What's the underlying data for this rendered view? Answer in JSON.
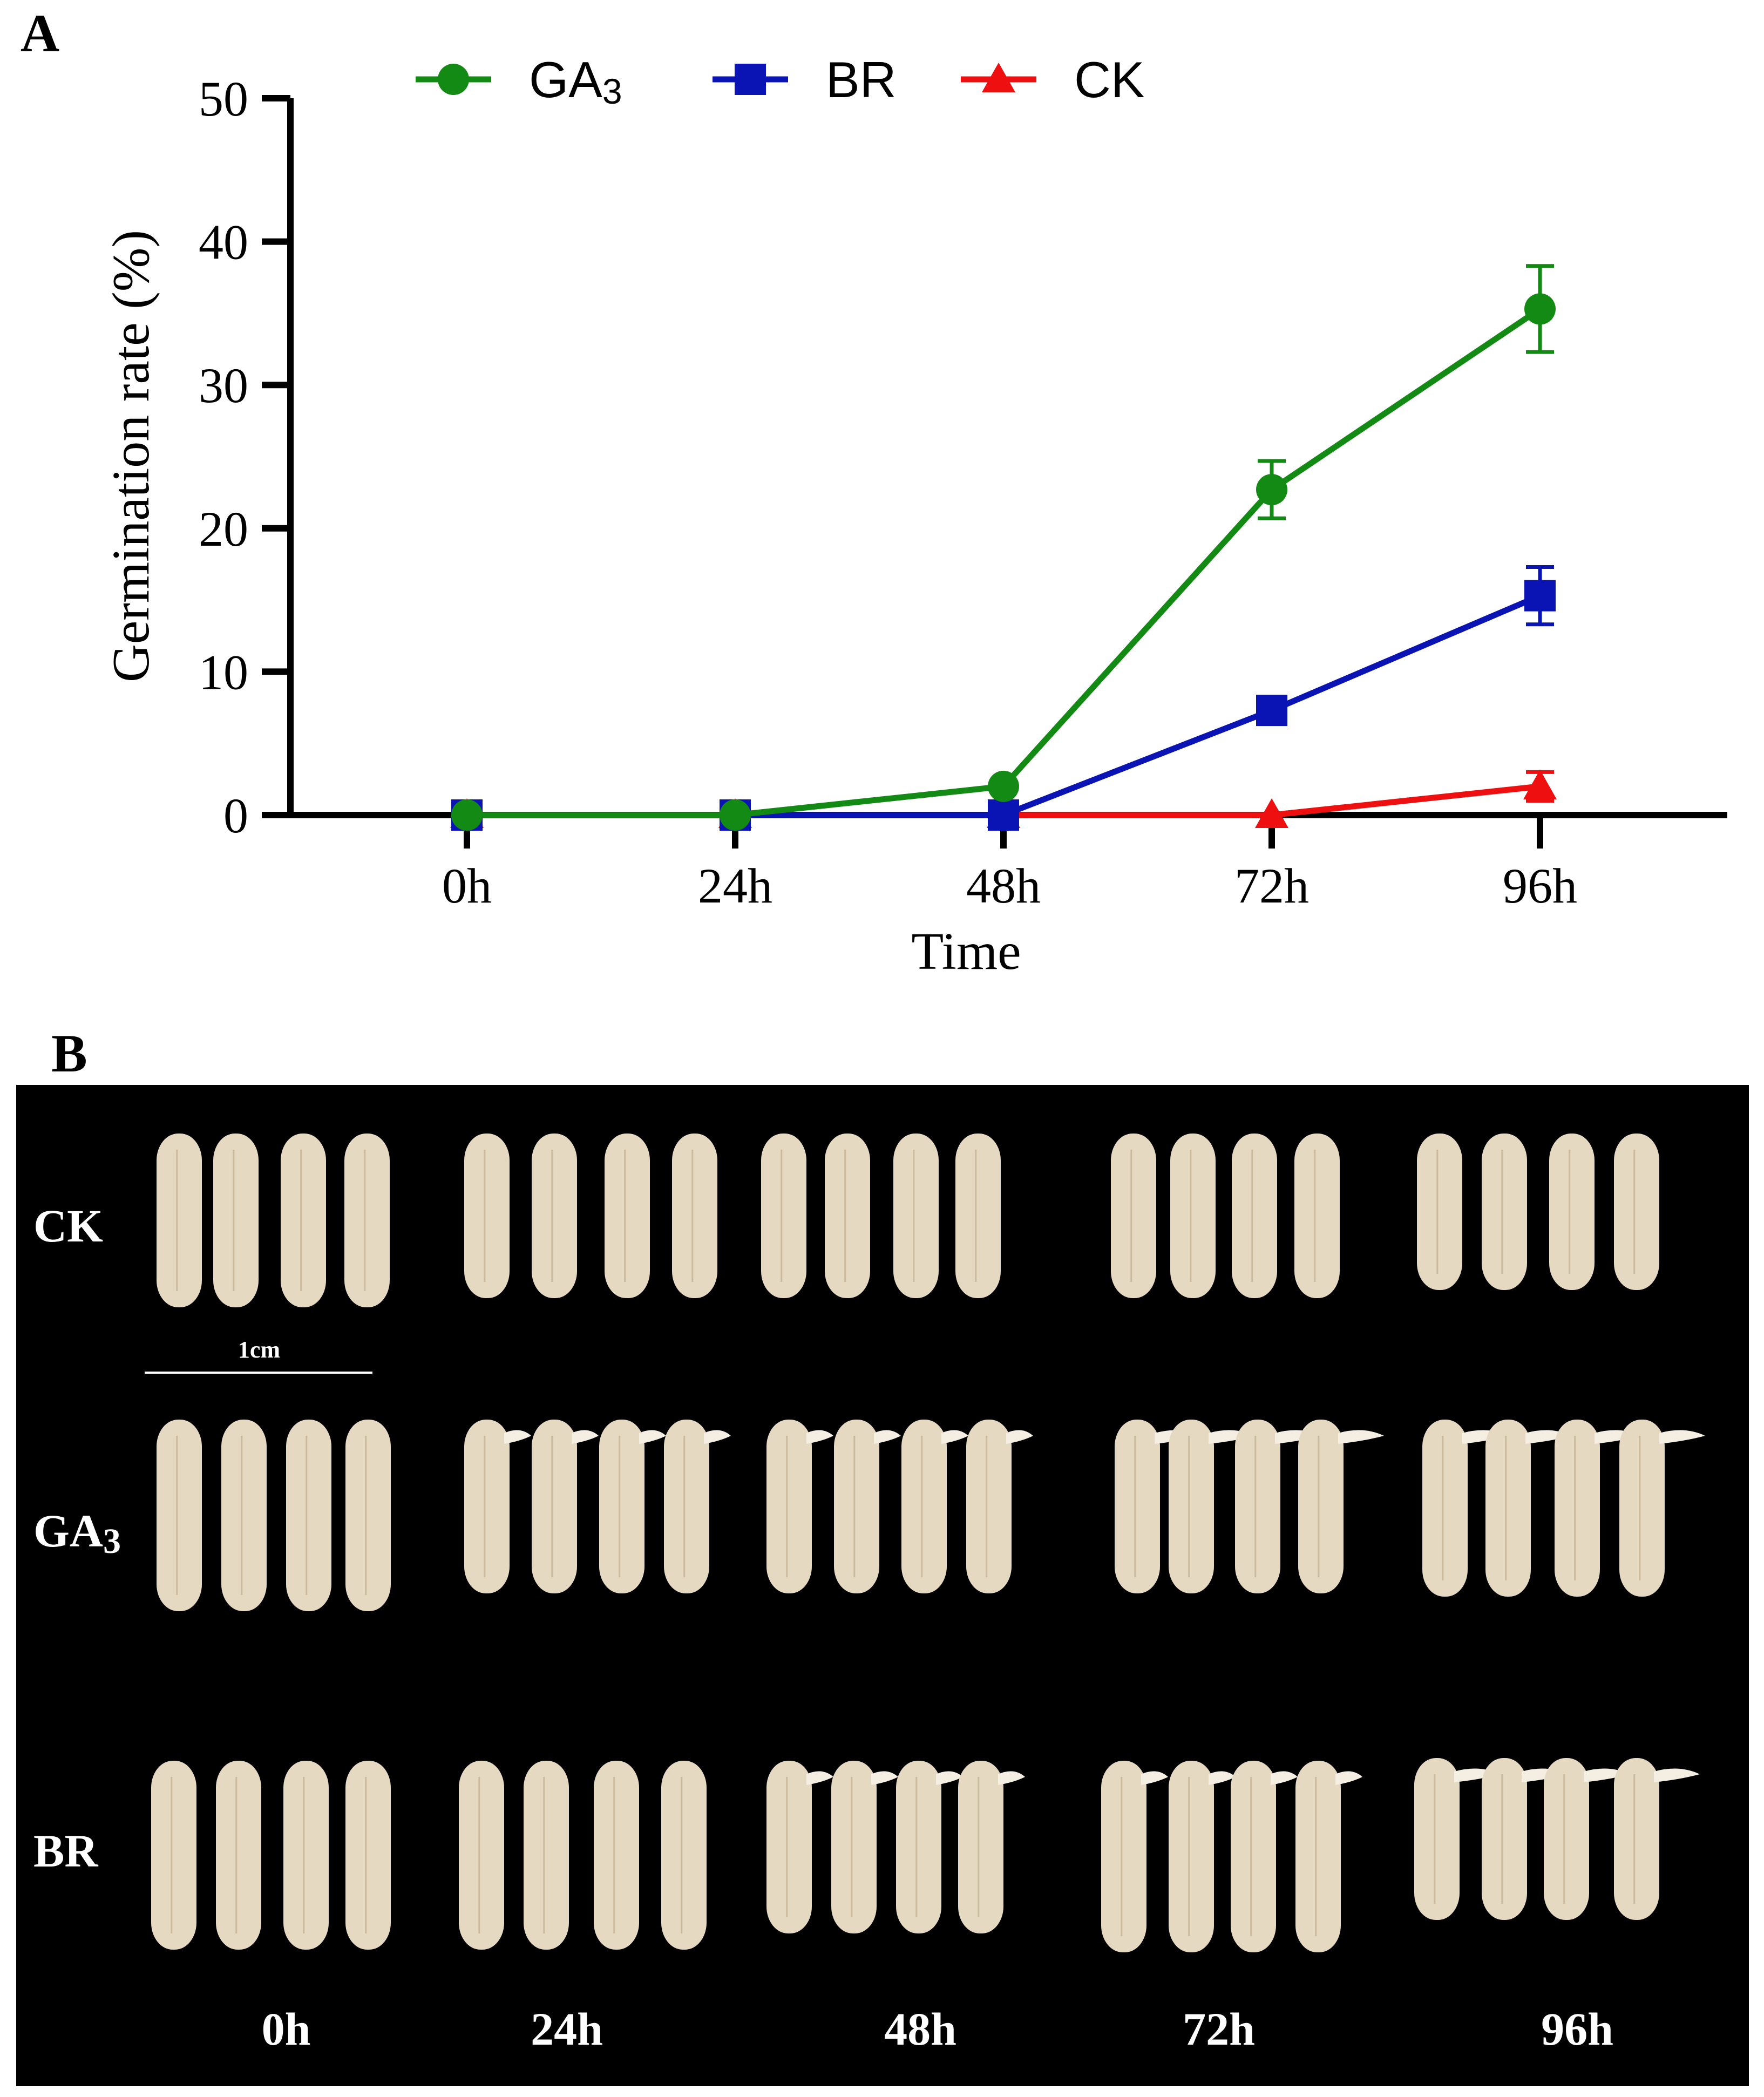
{
  "panels": {
    "a_label": "A",
    "b_label": "B"
  },
  "chart_data": {
    "type": "line",
    "title": "",
    "xlabel": "Time",
    "ylabel": "Germination rate (%)",
    "categories": [
      "0h",
      "24h",
      "48h",
      "72h",
      "96h"
    ],
    "ylim": [
      0,
      50
    ],
    "yticks": [
      "0",
      "10",
      "20",
      "30",
      "40",
      "50"
    ],
    "legend_position": "top",
    "grid": false,
    "series": [
      {
        "name": "GA3",
        "label_main": "GA",
        "label_sub": "3",
        "color": "#138a13",
        "marker": "circle",
        "values": [
          0,
          0,
          2,
          22.7,
          35.3
        ],
        "errors": [
          0,
          0,
          0,
          2,
          3
        ]
      },
      {
        "name": "BR",
        "label_main": "BR",
        "label_sub": "",
        "color": "#0a14b4",
        "marker": "square",
        "values": [
          0,
          0,
          0,
          7.3,
          15.3
        ],
        "errors": [
          0,
          0,
          0,
          0,
          2
        ]
      },
      {
        "name": "CK",
        "label_main": "CK",
        "label_sub": "",
        "color": "#ee1010",
        "marker": "triangle",
        "values": [
          0,
          0,
          0,
          0,
          2
        ],
        "errors": [
          0,
          0,
          0,
          0,
          1
        ]
      }
    ]
  },
  "photo": {
    "background_color": "#000000",
    "rows": [
      {
        "label_main": "CK",
        "label_sub": ""
      },
      {
        "label_main": "GA",
        "label_sub": "3"
      },
      {
        "label_main": "BR",
        "label_sub": ""
      }
    ],
    "time_labels": [
      "0h",
      "24h",
      "48h",
      "72h",
      "96h"
    ],
    "scale_bar_label": "1cm",
    "grain_color": "#e6d9c1",
    "sprout_color": "#f4efe2"
  }
}
